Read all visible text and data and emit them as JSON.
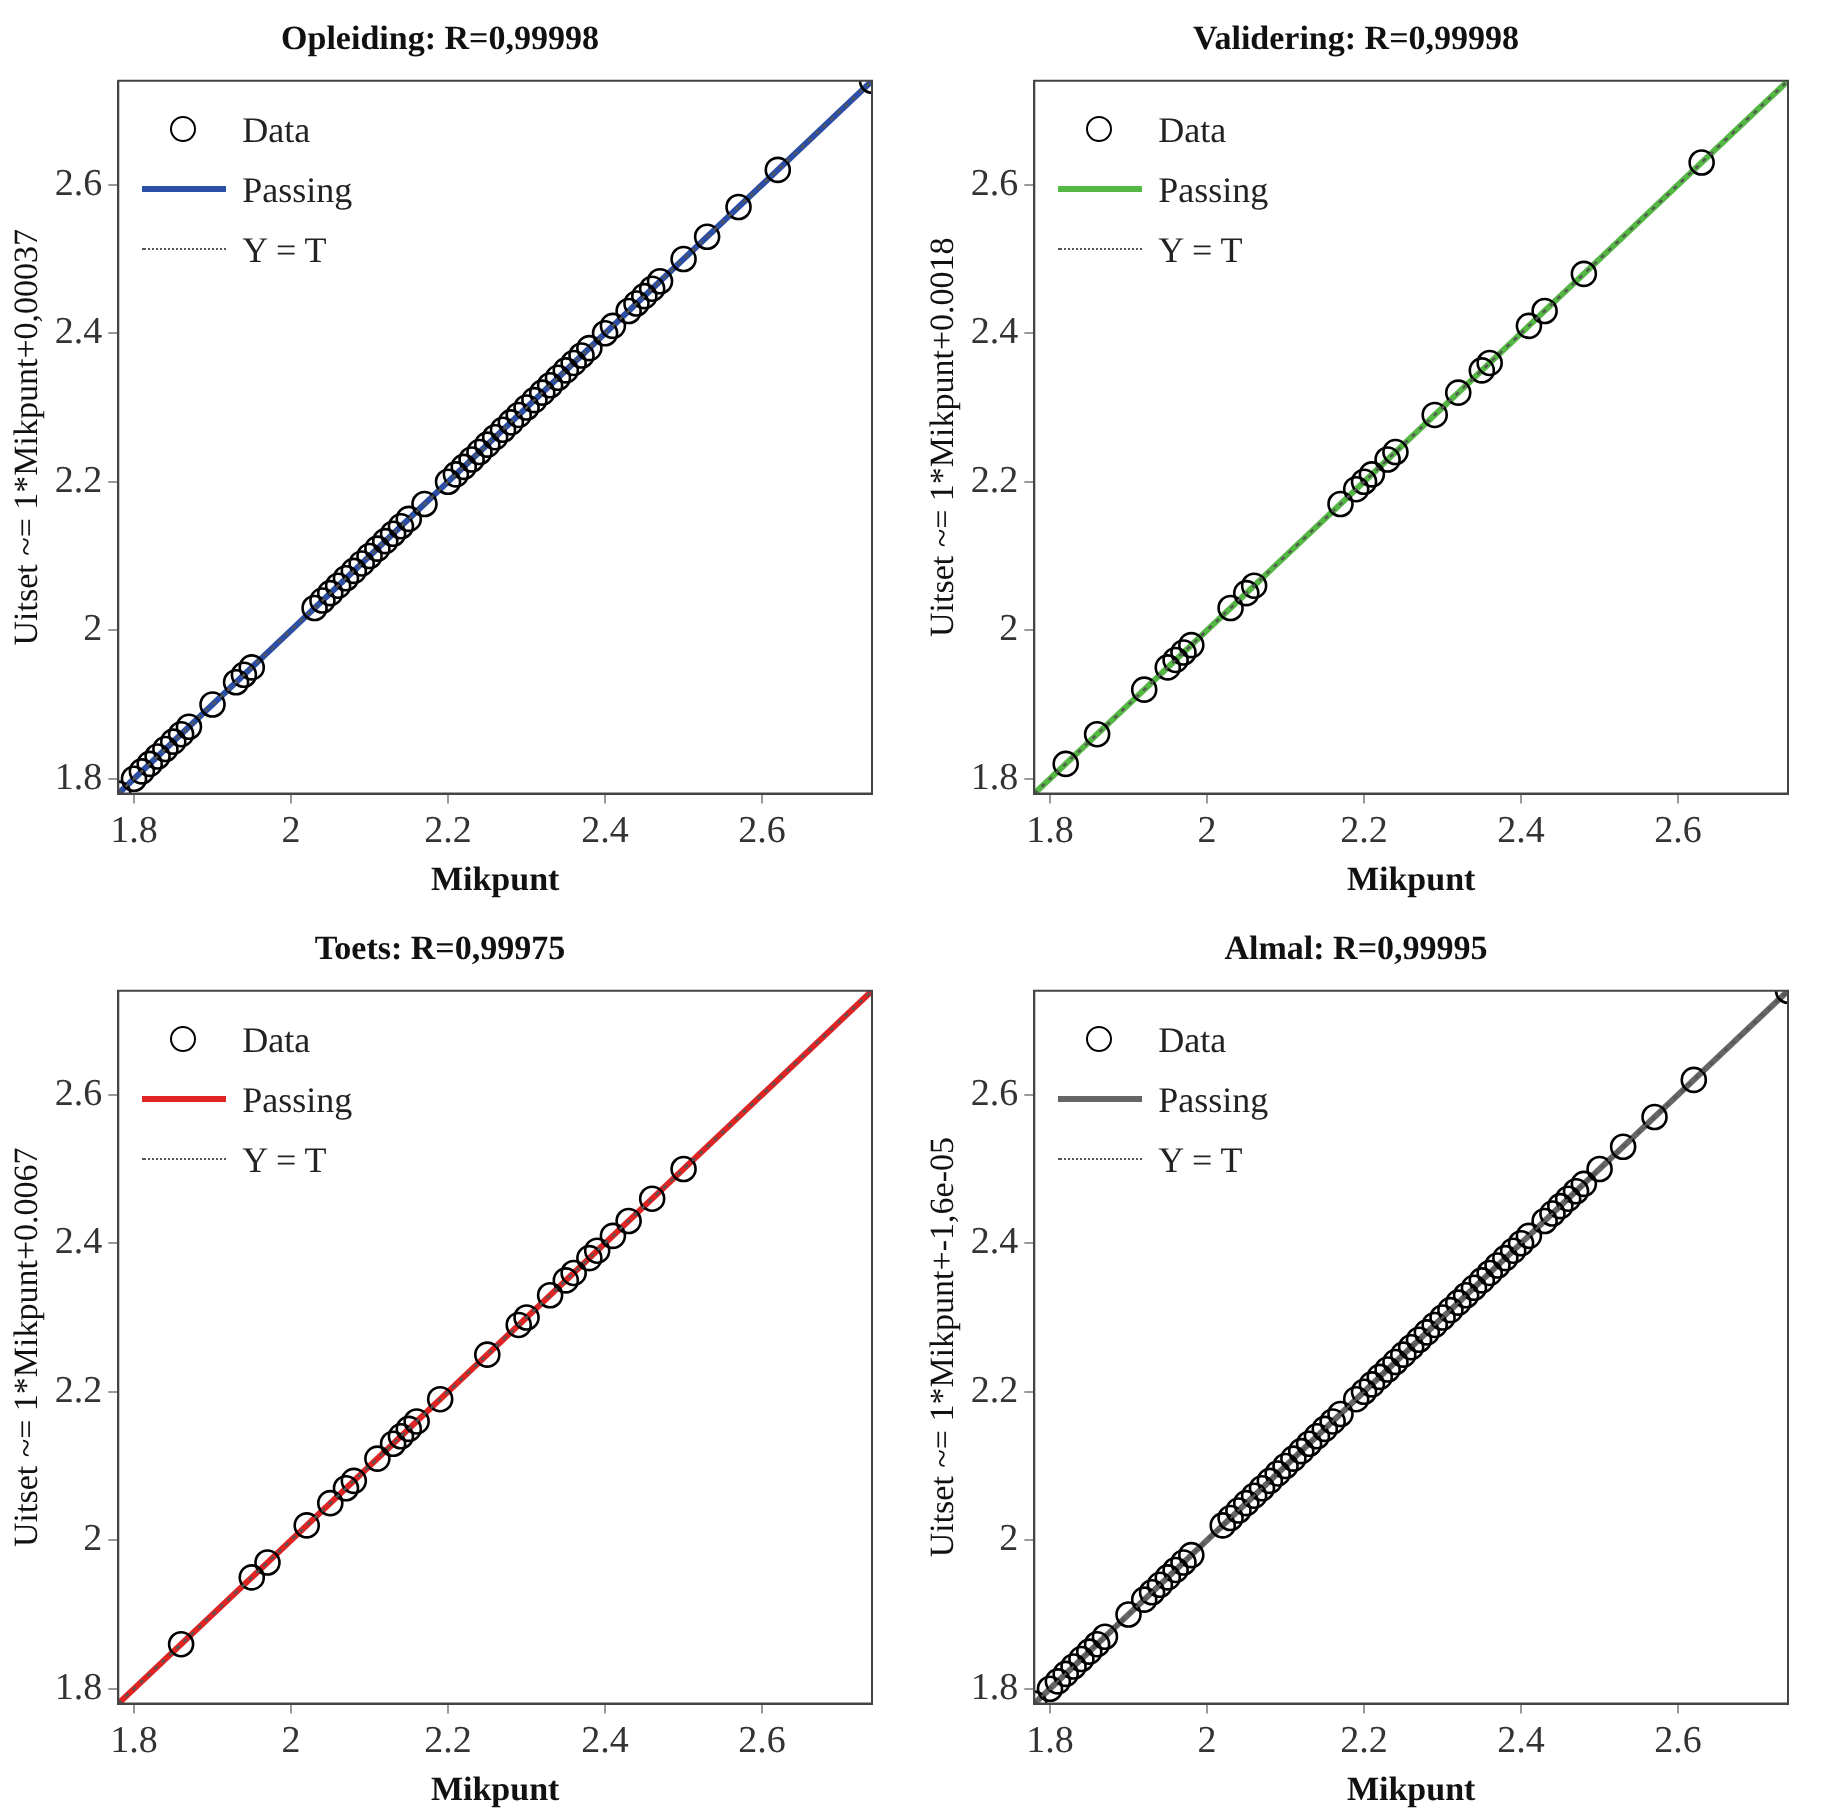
{
  "chart_data": [
    {
      "type": "scatter",
      "title": "Opleiding: R=0,99998",
      "xlabel": "Mikpunt",
      "ylabel": "Uitset ~= 1*Mikpunt+0,00037",
      "xlim": [
        1.78,
        2.74
      ],
      "ylim": [
        1.78,
        2.74
      ],
      "xticks": [
        1.8,
        2,
        2.2,
        2.4,
        2.6
      ],
      "yticks": [
        1.8,
        2,
        2.2,
        2.4,
        2.6
      ],
      "grid": false,
      "legend": "top left",
      "series": [
        {
          "name": "Data",
          "type": "scatter",
          "marker": "circle",
          "color": "#000000",
          "x": [
            1.78,
            1.8,
            1.81,
            1.82,
            1.83,
            1.84,
            1.85,
            1.86,
            1.87,
            1.9,
            1.93,
            1.94,
            1.95,
            2.03,
            2.04,
            2.05,
            2.06,
            2.07,
            2.08,
            2.09,
            2.1,
            2.11,
            2.12,
            2.13,
            2.14,
            2.15,
            2.17,
            2.2,
            2.21,
            2.22,
            2.23,
            2.24,
            2.25,
            2.26,
            2.27,
            2.28,
            2.29,
            2.3,
            2.31,
            2.32,
            2.33,
            2.34,
            2.35,
            2.36,
            2.37,
            2.38,
            2.4,
            2.41,
            2.43,
            2.44,
            2.45,
            2.46,
            2.47,
            2.5,
            2.53,
            2.57,
            2.62,
            2.74
          ],
          "values": [
            1.78,
            1.8,
            1.81,
            1.82,
            1.83,
            1.84,
            1.85,
            1.86,
            1.87,
            1.9,
            1.93,
            1.94,
            1.95,
            2.03,
            2.04,
            2.05,
            2.06,
            2.07,
            2.08,
            2.09,
            2.1,
            2.11,
            2.12,
            2.13,
            2.14,
            2.15,
            2.17,
            2.2,
            2.21,
            2.22,
            2.23,
            2.24,
            2.25,
            2.26,
            2.27,
            2.28,
            2.29,
            2.3,
            2.31,
            2.32,
            2.33,
            2.34,
            2.35,
            2.36,
            2.37,
            2.38,
            2.4,
            2.41,
            2.43,
            2.44,
            2.45,
            2.46,
            2.47,
            2.5,
            2.53,
            2.57,
            2.62,
            2.74
          ]
        },
        {
          "name": "Passing",
          "type": "line",
          "color": "#2b4ea6",
          "x": [
            1.78,
            2.74
          ],
          "values": [
            1.78,
            2.74
          ]
        },
        {
          "name": "Y = T",
          "type": "line",
          "line_style": "dotted",
          "color": "#555555",
          "x": [
            1.78,
            2.74
          ],
          "values": [
            1.78,
            2.74
          ]
        }
      ]
    },
    {
      "type": "scatter",
      "title": "Validering: R=0,99998",
      "xlabel": "Mikpunt",
      "ylabel": "Uitset ~= 1*Mikpunt+0.0018",
      "xlim": [
        1.78,
        2.74
      ],
      "ylim": [
        1.78,
        2.74
      ],
      "xticks": [
        1.8,
        2,
        2.2,
        2.4,
        2.6
      ],
      "yticks": [
        1.8,
        2,
        2.2,
        2.4,
        2.6
      ],
      "grid": false,
      "legend": "top left",
      "series": [
        {
          "name": "Data",
          "type": "scatter",
          "marker": "circle",
          "color": "#000000",
          "x": [
            1.82,
            1.86,
            1.92,
            1.95,
            1.96,
            1.97,
            1.98,
            2.03,
            2.05,
            2.06,
            2.17,
            2.19,
            2.2,
            2.21,
            2.23,
            2.24,
            2.29,
            2.32,
            2.35,
            2.36,
            2.41,
            2.43,
            2.48,
            2.63
          ],
          "values": [
            1.82,
            1.86,
            1.92,
            1.95,
            1.96,
            1.97,
            1.98,
            2.03,
            2.05,
            2.06,
            2.17,
            2.19,
            2.2,
            2.21,
            2.23,
            2.24,
            2.29,
            2.32,
            2.35,
            2.36,
            2.41,
            2.43,
            2.48,
            2.63
          ]
        },
        {
          "name": "Passing",
          "type": "line",
          "color": "#55b845",
          "x": [
            1.78,
            2.74
          ],
          "values": [
            1.78,
            2.74
          ]
        },
        {
          "name": "Y = T",
          "type": "line",
          "line_style": "dotted",
          "color": "#555555",
          "x": [
            1.78,
            2.74
          ],
          "values": [
            1.78,
            2.74
          ]
        }
      ]
    },
    {
      "type": "scatter",
      "title": "Toets: R=0,99975",
      "xlabel": "Mikpunt",
      "ylabel": "Uitset ~= 1*Mikpunt+0.0067",
      "xlim": [
        1.78,
        2.74
      ],
      "ylim": [
        1.78,
        2.74
      ],
      "xticks": [
        1.8,
        2,
        2.2,
        2.4,
        2.6
      ],
      "yticks": [
        1.8,
        2,
        2.2,
        2.4,
        2.6
      ],
      "grid": false,
      "legend": "top left",
      "series": [
        {
          "name": "Data",
          "type": "scatter",
          "marker": "circle",
          "color": "#000000",
          "x": [
            1.86,
            1.95,
            1.97,
            2.02,
            2.05,
            2.07,
            2.08,
            2.11,
            2.13,
            2.14,
            2.15,
            2.16,
            2.19,
            2.25,
            2.29,
            2.3,
            2.33,
            2.35,
            2.36,
            2.38,
            2.39,
            2.41,
            2.43,
            2.46,
            2.5
          ],
          "values": [
            1.86,
            1.95,
            1.97,
            2.02,
            2.05,
            2.07,
            2.08,
            2.11,
            2.13,
            2.14,
            2.15,
            2.16,
            2.19,
            2.25,
            2.29,
            2.3,
            2.33,
            2.35,
            2.36,
            2.38,
            2.39,
            2.41,
            2.43,
            2.46,
            2.5
          ]
        },
        {
          "name": "Passing",
          "type": "line",
          "color": "#e02424",
          "x": [
            1.78,
            2.74
          ],
          "values": [
            1.78,
            2.74
          ]
        },
        {
          "name": "Y = T",
          "type": "line",
          "line_style": "dotted",
          "color": "#555555",
          "x": [
            1.78,
            2.74
          ],
          "values": [
            1.78,
            2.74
          ]
        }
      ]
    },
    {
      "type": "scatter",
      "title": "Almal: R=0,99995",
      "xlabel": "Mikpunt",
      "ylabel": "Uitset ~= 1*Mikpunt+-1,6e-05",
      "xlim": [
        1.78,
        2.74
      ],
      "ylim": [
        1.78,
        2.74
      ],
      "xticks": [
        1.8,
        2,
        2.2,
        2.4,
        2.6
      ],
      "yticks": [
        1.8,
        2,
        2.2,
        2.4,
        2.6
      ],
      "grid": false,
      "legend": "top left",
      "series": [
        {
          "name": "Data",
          "type": "scatter",
          "marker": "circle",
          "color": "#000000",
          "x": [
            1.78,
            1.8,
            1.81,
            1.82,
            1.83,
            1.84,
            1.85,
            1.86,
            1.87,
            1.9,
            1.92,
            1.93,
            1.94,
            1.95,
            1.96,
            1.97,
            1.98,
            2.02,
            2.03,
            2.04,
            2.05,
            2.06,
            2.07,
            2.08,
            2.09,
            2.1,
            2.11,
            2.12,
            2.13,
            2.14,
            2.15,
            2.16,
            2.17,
            2.19,
            2.2,
            2.21,
            2.22,
            2.23,
            2.24,
            2.25,
            2.26,
            2.27,
            2.28,
            2.29,
            2.3,
            2.31,
            2.32,
            2.33,
            2.34,
            2.35,
            2.36,
            2.37,
            2.38,
            2.39,
            2.4,
            2.41,
            2.43,
            2.44,
            2.45,
            2.46,
            2.47,
            2.48,
            2.5,
            2.53,
            2.57,
            2.62,
            2.74
          ],
          "values": [
            1.78,
            1.8,
            1.81,
            1.82,
            1.83,
            1.84,
            1.85,
            1.86,
            1.87,
            1.9,
            1.92,
            1.93,
            1.94,
            1.95,
            1.96,
            1.97,
            1.98,
            2.02,
            2.03,
            2.04,
            2.05,
            2.06,
            2.07,
            2.08,
            2.09,
            2.1,
            2.11,
            2.12,
            2.13,
            2.14,
            2.15,
            2.16,
            2.17,
            2.19,
            2.2,
            2.21,
            2.22,
            2.23,
            2.24,
            2.25,
            2.26,
            2.27,
            2.28,
            2.29,
            2.3,
            2.31,
            2.32,
            2.33,
            2.34,
            2.35,
            2.36,
            2.37,
            2.38,
            2.39,
            2.4,
            2.41,
            2.43,
            2.44,
            2.45,
            2.46,
            2.47,
            2.48,
            2.5,
            2.53,
            2.57,
            2.62,
            2.74
          ]
        },
        {
          "name": "Passing",
          "type": "line",
          "color": "#666666",
          "x": [
            1.78,
            2.74
          ],
          "values": [
            1.78,
            2.74
          ]
        },
        {
          "name": "Y = T",
          "type": "line",
          "line_style": "dotted",
          "color": "#555555",
          "x": [
            1.78,
            2.74
          ],
          "values": [
            1.78,
            2.74
          ]
        }
      ]
    }
  ]
}
